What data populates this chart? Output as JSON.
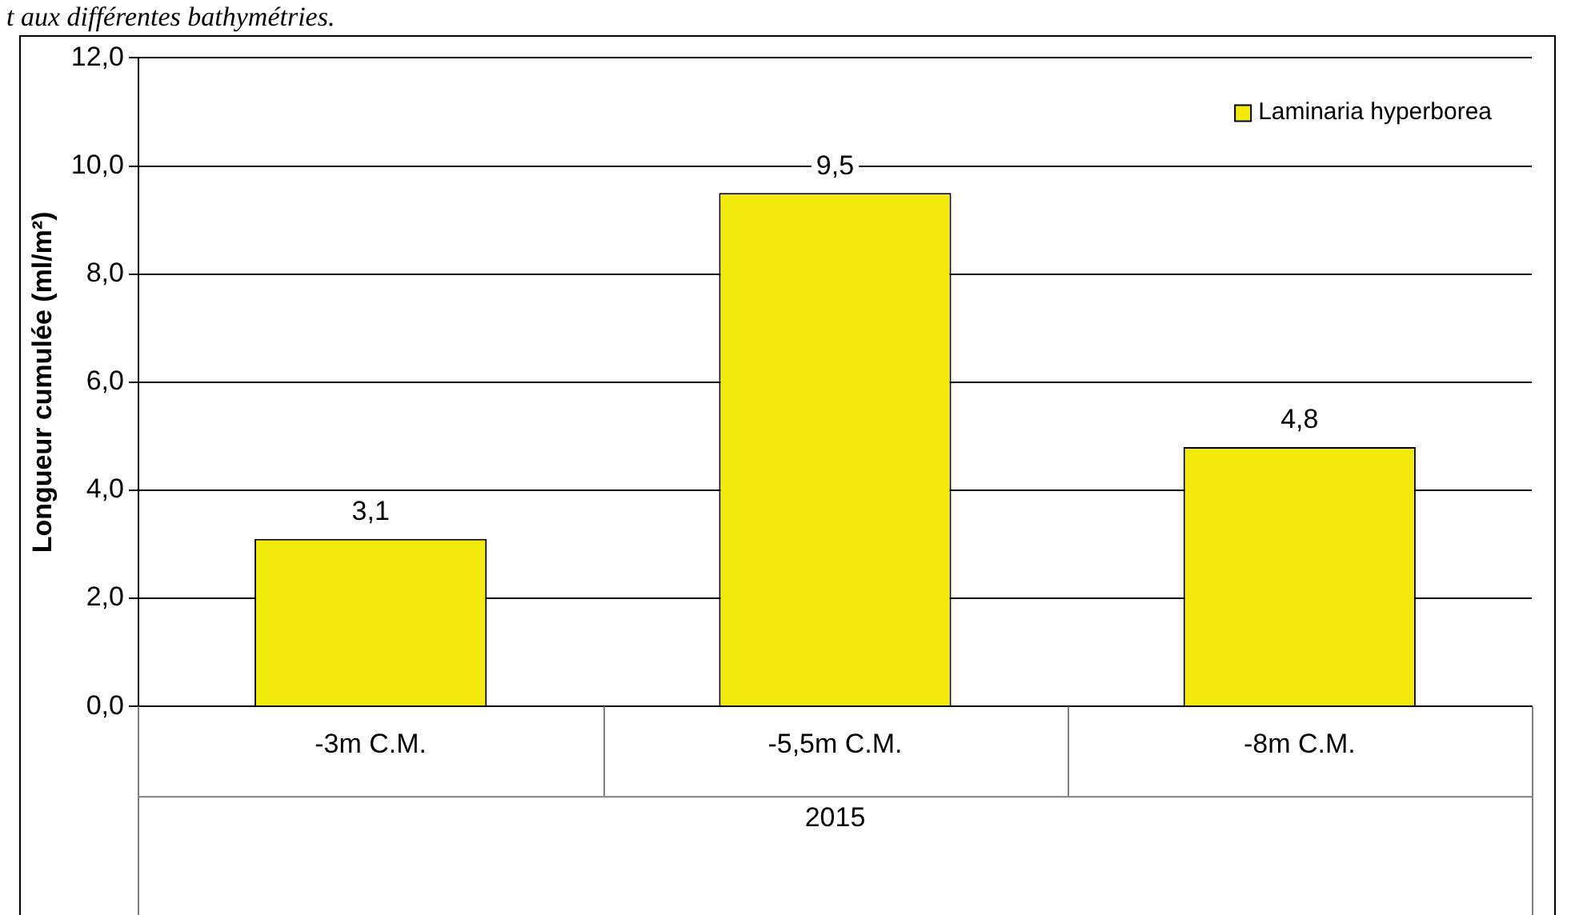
{
  "chart_data": {
    "type": "bar",
    "ylabel": "Longueur cumulée (ml/m²)",
    "xlabel": "2015",
    "annotations": [
      "t aux différentes bathymétries."
    ],
    "categories": [
      "-3m C.M.",
      "-5,5m C.M.",
      "-8m C.M."
    ],
    "series": [
      {
        "name": "Laminaria hyperborea",
        "color": "#f2ea0c",
        "values": [
          3.1,
          9.5,
          4.8
        ],
        "value_labels": [
          "3,1",
          "9,5",
          "4,8"
        ]
      }
    ],
    "ylim": [
      0,
      12
    ],
    "yticks": [
      {
        "value": 0,
        "label": "0,0"
      },
      {
        "value": 2,
        "label": "2,0"
      },
      {
        "value": 4,
        "label": "4,0"
      },
      {
        "value": 6,
        "label": "6,0"
      },
      {
        "value": 8,
        "label": "8,0"
      },
      {
        "value": 10,
        "label": "10,0"
      },
      {
        "value": 12,
        "label": "12,0"
      }
    ],
    "grid": "y",
    "legend": "top right"
  }
}
